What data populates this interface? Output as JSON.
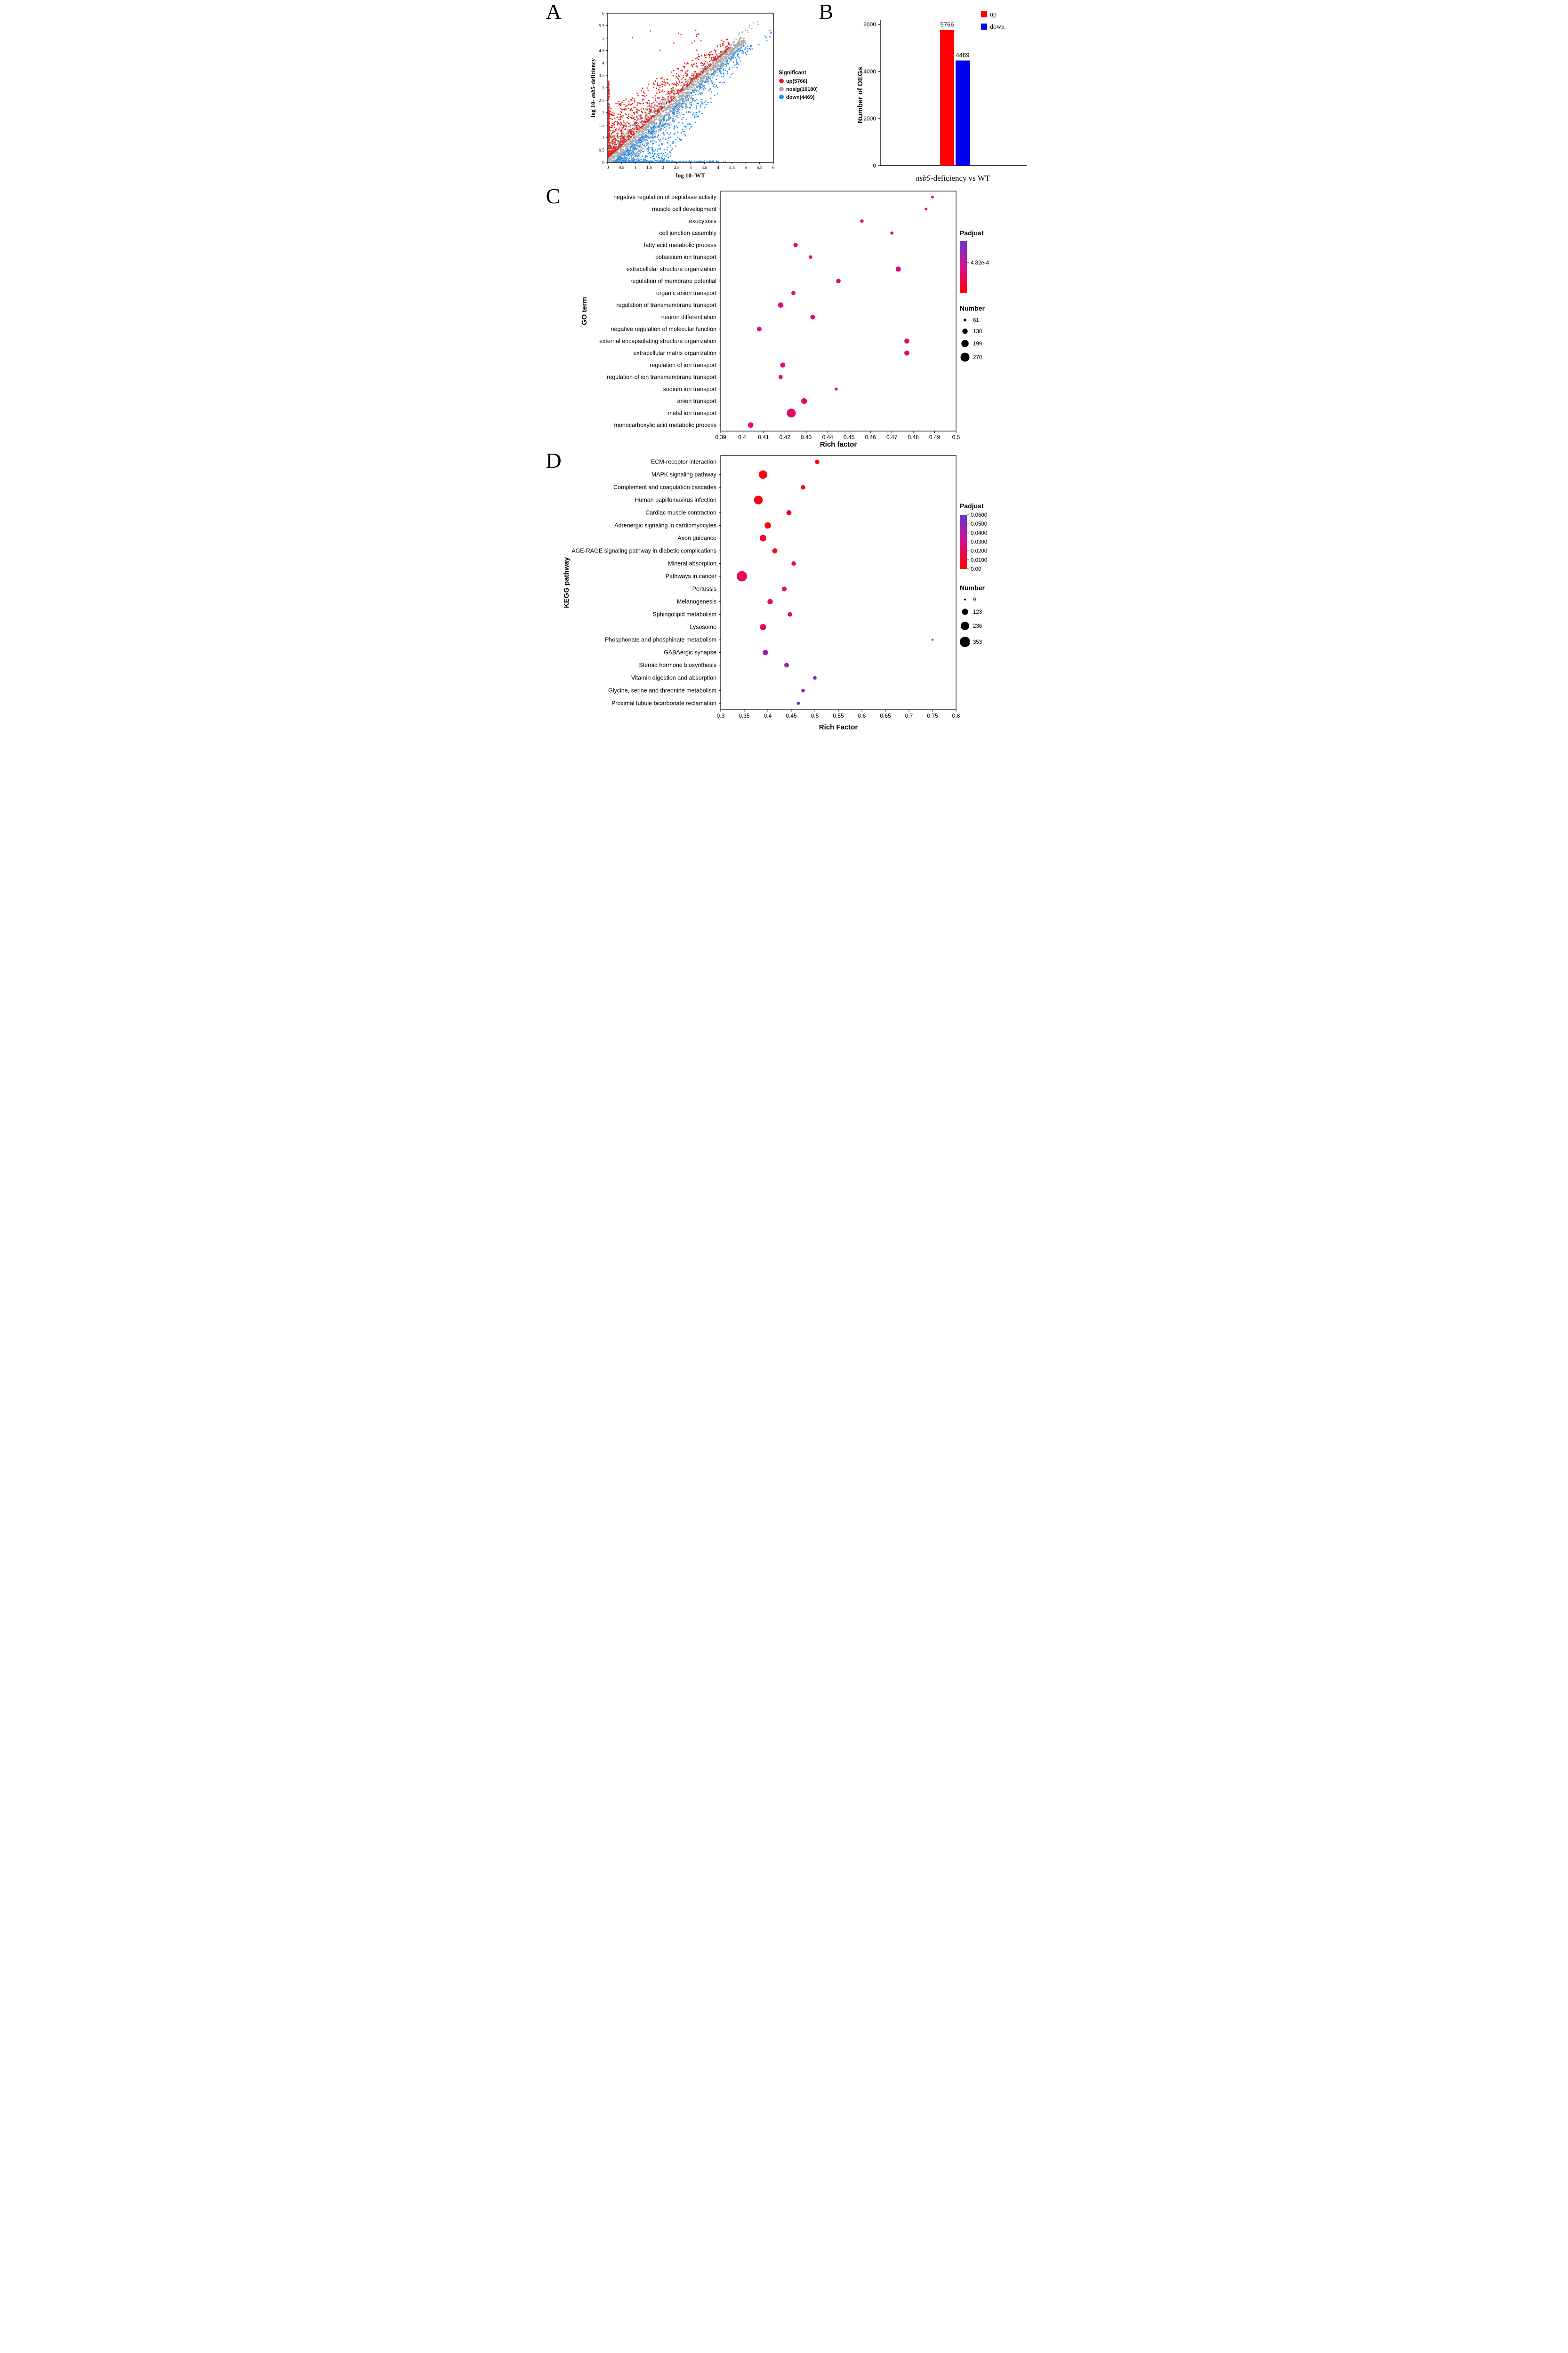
{
  "figure": {
    "background": "#FFFFFF"
  },
  "panels": {
    "a": {
      "label": "A"
    },
    "b": {
      "label": "B"
    },
    "c": {
      "label": "C"
    },
    "d": {
      "label": "D"
    }
  },
  "chart_data": [
    {
      "id": "A",
      "type": "scatter",
      "xlabel": "log 10- WT",
      "ylabel_prefix": "log 10- ",
      "ylabel_italic": "asb5",
      "ylabel_suffix": "-deficiency",
      "xlim": [
        0,
        6
      ],
      "ylim": [
        0,
        6
      ],
      "tick_step": 0.5,
      "legend_title": "Significant",
      "series": [
        {
          "name": "up",
          "count": 5766,
          "label": "up(5766)",
          "color": "#E52222"
        },
        {
          "name": "nosig",
          "count": 16180,
          "label": "nosig(16180)",
          "color": "#ABABAB"
        },
        {
          "name": "down",
          "count": 4469,
          "label": "down(4469)",
          "color": "#1E8FFF"
        }
      ]
    },
    {
      "id": "B",
      "type": "bar",
      "categories": [
        "up",
        "down"
      ],
      "values": [
        5766,
        4469
      ],
      "value_labels": [
        "5766",
        "4469"
      ],
      "colors": [
        "#FF0000",
        "#0000EE"
      ],
      "ylabel": "Number of DEGs",
      "yticks": [
        0,
        2000,
        4000,
        6000
      ],
      "ylim": [
        0,
        6000
      ],
      "xtitle_italic": "asb5",
      "xtitle_rest": "-deficiency vs WT",
      "legend": [
        {
          "label": "up",
          "color": "#FF0000"
        },
        {
          "label": "down",
          "color": "#0000EE"
        }
      ]
    },
    {
      "id": "C",
      "type": "bubble",
      "ylabel": "GO term",
      "xlabel": "Rich factor",
      "xlim": [
        0.39,
        0.5
      ],
      "xtick_step": 0.01,
      "grid": false,
      "padjust_legend": {
        "title": "Padjust",
        "ticks": [
          {
            "label": "4.82e-4",
            "pos": 0.42
          }
        ]
      },
      "number_legend": {
        "title": "Number",
        "values": [
          61,
          130,
          199,
          270
        ]
      },
      "points": [
        {
          "term": "negative regulation of peptidase activity",
          "rich_factor": 0.489,
          "number": 61,
          "color_t": 0.45
        },
        {
          "term": "muscle cell development",
          "rich_factor": 0.486,
          "number": 61,
          "color_t": 0.45
        },
        {
          "term": "exocytosis",
          "rich_factor": 0.456,
          "number": 75,
          "color_t": 0.4
        },
        {
          "term": "cell junction assembly",
          "rich_factor": 0.47,
          "number": 70,
          "color_t": 0.38
        },
        {
          "term": "fatty acid metabolic process",
          "rich_factor": 0.425,
          "number": 100,
          "color_t": 0.42
        },
        {
          "term": "potassium ion transport",
          "rich_factor": 0.432,
          "number": 80,
          "color_t": 0.45
        },
        {
          "term": "extracellular structure organization",
          "rich_factor": 0.473,
          "number": 125,
          "color_t": 0.4
        },
        {
          "term": "regulation of membrane potential",
          "rich_factor": 0.445,
          "number": 105,
          "color_t": 0.42
        },
        {
          "term": "organic anion transport",
          "rich_factor": 0.424,
          "number": 95,
          "color_t": 0.45
        },
        {
          "term": "regulation of transmembrane transport",
          "rich_factor": 0.418,
          "number": 130,
          "color_t": 0.42
        },
        {
          "term": "neuron differentiation",
          "rich_factor": 0.433,
          "number": 110,
          "color_t": 0.42
        },
        {
          "term": "negative regulation of molecular function",
          "rich_factor": 0.408,
          "number": 110,
          "color_t": 0.48
        },
        {
          "term": "external encapsulating structure organization",
          "rich_factor": 0.477,
          "number": 120,
          "color_t": 0.35
        },
        {
          "term": "extracellular matrix organization",
          "rich_factor": 0.477,
          "number": 120,
          "color_t": 0.35
        },
        {
          "term": "regulation of ion transport",
          "rich_factor": 0.419,
          "number": 120,
          "color_t": 0.42
        },
        {
          "term": "regulation of ion transmembrane transport",
          "rich_factor": 0.418,
          "number": 95,
          "color_t": 0.45
        },
        {
          "term": "sodium ion transport",
          "rich_factor": 0.444,
          "number": 65,
          "color_t": 0.48
        },
        {
          "term": "anion transport",
          "rich_factor": 0.429,
          "number": 145,
          "color_t": 0.38
        },
        {
          "term": "metal ion transport",
          "rich_factor": 0.423,
          "number": 270,
          "color_t": 0.35
        },
        {
          "term": "monocarboxylic acid metabolic process",
          "rich_factor": 0.404,
          "number": 135,
          "color_t": 0.42
        }
      ]
    },
    {
      "id": "D",
      "type": "bubble",
      "ylabel": "KEGG pathway",
      "xlabel": "Rich Factor",
      "xlim": [
        0.3,
        0.8
      ],
      "xtick_step": 0.05,
      "grid": false,
      "padjust_legend": {
        "title": "Padjust",
        "ticks": [
          {
            "label": "0.0600",
            "pos": 0
          },
          {
            "label": "0.0500",
            "pos": 0.167
          },
          {
            "label": "0.0400",
            "pos": 0.333
          },
          {
            "label": "0.0300",
            "pos": 0.5
          },
          {
            "label": "0.0200",
            "pos": 0.667
          },
          {
            "label": "0.0100",
            "pos": 0.833
          },
          {
            "label": "0.00",
            "pos": 1
          }
        ]
      },
      "number_legend": {
        "title": "Number",
        "values": [
          9,
          123,
          236,
          353
        ]
      },
      "points": [
        {
          "term": "ECM-receptor interaction",
          "rich_factor": 0.505,
          "number": 60,
          "color_t": 0.03
        },
        {
          "term": "MAPK signaling pathway",
          "rich_factor": 0.39,
          "number": 230,
          "color_t": 0.06
        },
        {
          "term": "Complement and coagulation cascades",
          "rich_factor": 0.475,
          "number": 60,
          "color_t": 0.08
        },
        {
          "term": "Human papillomavirus infection",
          "rich_factor": 0.38,
          "number": 250,
          "color_t": 0.06
        },
        {
          "term": "Cardiac muscle contraction",
          "rich_factor": 0.445,
          "number": 80,
          "color_t": 0.12
        },
        {
          "term": "Adrenergic signaling in cardiomyocytes",
          "rich_factor": 0.4,
          "number": 130,
          "color_t": 0.1
        },
        {
          "term": "Axon guidance",
          "rich_factor": 0.39,
          "number": 140,
          "color_t": 0.12
        },
        {
          "term": "AGE-RAGE signaling pathway in diabetic complications",
          "rich_factor": 0.415,
          "number": 80,
          "color_t": 0.15
        },
        {
          "term": "Mineral absorption",
          "rich_factor": 0.455,
          "number": 60,
          "color_t": 0.18
        },
        {
          "term": "Pathways in cancer",
          "rich_factor": 0.345,
          "number": 353,
          "color_t": 0.28
        },
        {
          "term": "Pertussis",
          "rich_factor": 0.435,
          "number": 70,
          "color_t": 0.3
        },
        {
          "term": "Melanogenesis",
          "rich_factor": 0.405,
          "number": 90,
          "color_t": 0.33
        },
        {
          "term": "Sphingolipid metabolism",
          "rich_factor": 0.447,
          "number": 60,
          "color_t": 0.33
        },
        {
          "term": "Lysosome",
          "rich_factor": 0.39,
          "number": 120,
          "color_t": 0.28
        },
        {
          "term": "Phosphonate and phosphinate metabolism",
          "rich_factor": 0.75,
          "number": 9,
          "color_t": 0.5
        },
        {
          "term": "GABAergic synapse",
          "rich_factor": 0.395,
          "number": 95,
          "color_t": 0.8
        },
        {
          "term": "Steroid hormone biosynthesis",
          "rich_factor": 0.44,
          "number": 70,
          "color_t": 0.75
        },
        {
          "term": "Vitamin digestion and absorption",
          "rich_factor": 0.5,
          "number": 40,
          "color_t": 0.83
        },
        {
          "term": "Glycine, serine and threonine metabolism",
          "rich_factor": 0.475,
          "number": 40,
          "color_t": 0.83
        },
        {
          "term": "Proximal tubule bicarbonate reclamation",
          "rich_factor": 0.465,
          "number": 30,
          "color_t": 0.9
        }
      ]
    }
  ]
}
